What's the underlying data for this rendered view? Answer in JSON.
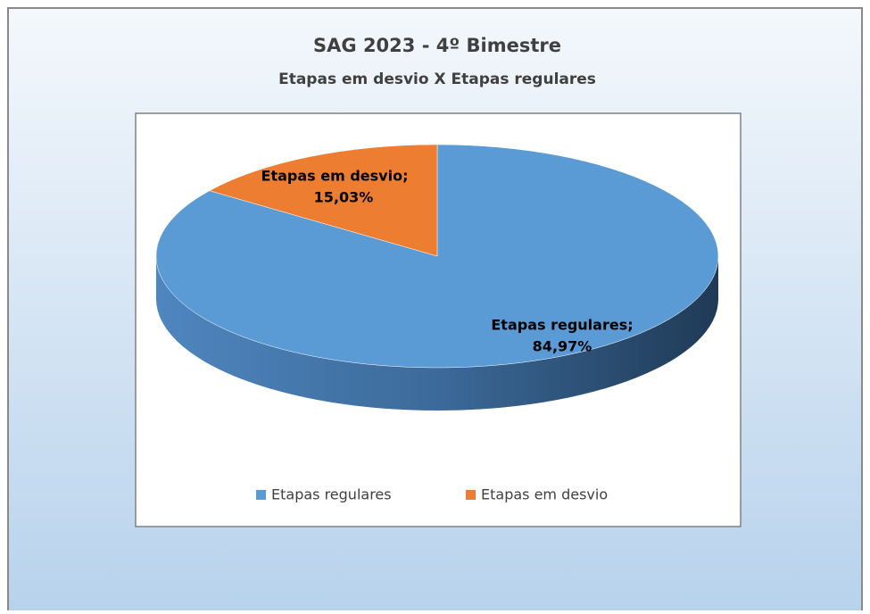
{
  "chart_data": {
    "type": "pie",
    "title": "SAG 2023 - 4º Bimestre",
    "subtitle": "Etapas em desvio X Etapas regulares",
    "categories": [
      "Etapas regulares",
      "Etapas em desvio"
    ],
    "values": [
      84.97,
      15.03
    ],
    "value_labels": [
      "84,97%",
      "15,03%"
    ],
    "label_names": [
      "Etapas regulares;",
      "Etapas em desvio;"
    ],
    "colors": [
      "#5b9bd5",
      "#ed7d31"
    ],
    "legend": "bottom"
  }
}
